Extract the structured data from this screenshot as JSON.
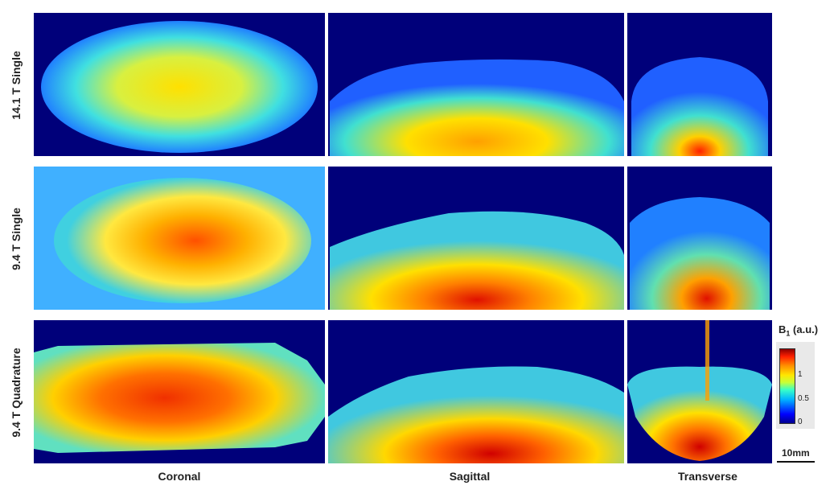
{
  "rows": [
    "14.1 T Single",
    "9.4 T Single",
    "9.4 T Quadrature"
  ],
  "columns": [
    "Coronal",
    "Sagittal",
    "Transverse"
  ],
  "colorbar": {
    "title_main": "B",
    "title_sub": "1",
    "title_unit": " (a.u.)",
    "ticks": [
      "1",
      "0.5",
      "0"
    ]
  },
  "scale_bar": "10mm",
  "colors": {
    "background": "#00007a",
    "high": "#c80000",
    "mid": "#ffd000",
    "low": "#30c8ff"
  }
}
